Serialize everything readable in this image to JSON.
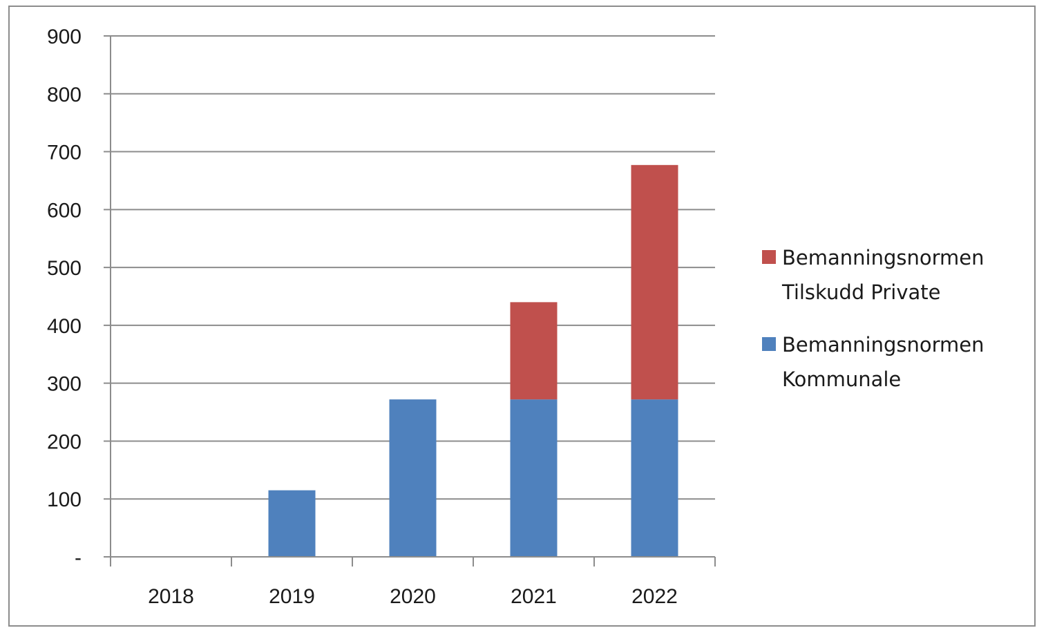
{
  "chart_data": {
    "type": "bar",
    "stacked": true,
    "categories": [
      "2018",
      "2019",
      "2020",
      "2021",
      "2022"
    ],
    "series": [
      {
        "name": "Bemanningsnormen Kommunale",
        "name_lines": [
          "Bemanningsnormen",
          "Kommunale"
        ],
        "color": "#4f81bd",
        "values": [
          0,
          115,
          272,
          272,
          272
        ]
      },
      {
        "name": "Bemanningsnormen Tilskudd Private",
        "name_lines": [
          "Bemanningsnormen",
          "Tilskudd Private"
        ],
        "color": "#c0504d",
        "values": [
          0,
          0,
          0,
          168,
          405
        ]
      }
    ],
    "y_ticks": [
      "-",
      "100",
      "200",
      "300",
      "400",
      "500",
      "600",
      "700",
      "800",
      "900"
    ],
    "ylim": [
      0,
      900
    ],
    "grid": true,
    "legend_position": "right",
    "title": "",
    "xlabel": "",
    "ylabel": ""
  }
}
